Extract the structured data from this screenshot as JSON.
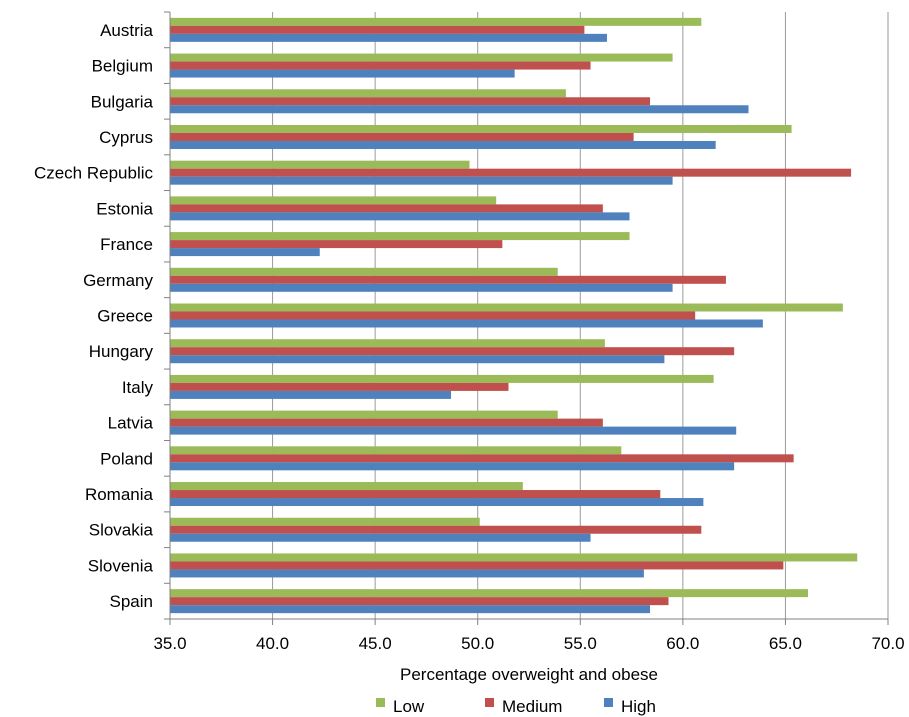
{
  "chart_data": {
    "type": "bar",
    "orientation": "horizontal",
    "categories": [
      "Austria",
      "Belgium",
      "Bulgaria",
      "Cyprus",
      "Czech Republic",
      "Estonia",
      "France",
      "Germany",
      "Greece",
      "Hungary",
      "Italy",
      "Latvia",
      "Poland",
      "Romania",
      "Slovakia",
      "Slovenia",
      "Spain"
    ],
    "series": [
      {
        "name": "Low",
        "color": "#9BBB59",
        "values": [
          60.9,
          59.5,
          54.3,
          65.3,
          49.6,
          50.9,
          57.4,
          53.9,
          67.8,
          56.2,
          61.5,
          53.9,
          57.0,
          52.2,
          50.1,
          68.5,
          66.1
        ]
      },
      {
        "name": "Medium",
        "color": "#C0504D",
        "values": [
          55.2,
          55.5,
          58.4,
          57.6,
          68.2,
          56.1,
          51.2,
          62.1,
          60.6,
          62.5,
          51.5,
          56.1,
          65.4,
          58.9,
          60.9,
          64.9,
          59.3
        ]
      },
      {
        "name": "High",
        "color": "#4F81BD",
        "values": [
          56.3,
          51.8,
          63.2,
          61.6,
          59.5,
          57.4,
          42.3,
          59.5,
          63.9,
          59.1,
          48.7,
          62.6,
          62.5,
          61.0,
          55.5,
          58.1,
          58.4
        ]
      }
    ],
    "xlabel": "Percentage overweight and obese",
    "xlim": [
      35.0,
      70.0
    ],
    "xticks": [
      "35.0",
      "40.0",
      "45.0",
      "50.0",
      "55.0",
      "60.0",
      "65.0",
      "70.0"
    ],
    "grid": "vertical",
    "legend_position": "bottom"
  }
}
